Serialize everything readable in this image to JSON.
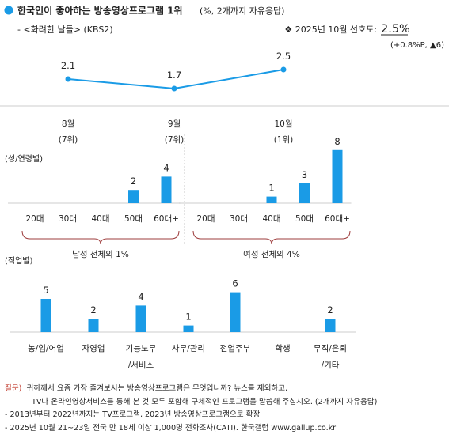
{
  "header": {
    "title": "한국인이 좋아하는 방송영상프로그램 1위",
    "title_note": "(%, 2개까지 자유응답)",
    "program": "- <화려한 날들> (KBS2)",
    "pref_prefix": "❖  2025년 10월 선호도:",
    "pref_value": "2.5%",
    "pref_change": "(+0.8%P, ▲6)"
  },
  "colors": {
    "accent": "#1a9be6",
    "bracket": "#9e3d3d",
    "question": "#c0392b"
  },
  "chart_data": [
    {
      "type": "line",
      "categories": [
        "8월",
        "9월",
        "10월"
      ],
      "ranks": [
        "(7위)",
        "(7위)",
        "(1위)"
      ],
      "values": [
        2.1,
        1.7,
        2.5
      ],
      "labels": [
        "2.1",
        "1.7",
        "2.5"
      ]
    },
    {
      "type": "bar",
      "title": "(성/연령별)",
      "groups": [
        {
          "name": "남성",
          "total": "남성  전체의  1%",
          "categories": [
            "20대",
            "30대",
            "40대",
            "50대",
            "60대+"
          ],
          "values": [
            0,
            0,
            0,
            2,
            4
          ]
        },
        {
          "name": "여성",
          "total": "여성  전체의  4%",
          "categories": [
            "20대",
            "30대",
            "40대",
            "50대",
            "60대+"
          ],
          "values": [
            0,
            0,
            1,
            3,
            8
          ]
        }
      ]
    },
    {
      "type": "bar",
      "title": "(직업별)",
      "categories": [
        [
          "농/임/어업"
        ],
        [
          "자영업"
        ],
        [
          "기능노무",
          "/서비스"
        ],
        [
          "사무/관리"
        ],
        [
          "전업주부"
        ],
        [
          "학생"
        ],
        [
          "무직/은퇴",
          "/기타"
        ]
      ],
      "values": [
        5,
        2,
        4,
        1,
        6,
        0,
        2
      ]
    }
  ],
  "footer": {
    "q_label": "질문)",
    "q_text1": "귀하께서 요즘 가장 즐겨보시는 방송영상프로그램은 무엇입니까? 뉴스를 제외하고,",
    "q_text2": "TV나 온라인영상서비스를 통해 본 것 모두 포함해 구체적인 프로그램을 말씀해 주십시오. (2개까지 자유응답)",
    "note1": "- 2013년부터 2022년까지는 TV프로그램, 2023년 방송영상프로그램으로 확장",
    "note2": "- 2025년 10월 21~23일 전국 만 18세 이상 1,000명 전화조사(CATI). 한국갤럽 www.gallup.co.kr"
  }
}
